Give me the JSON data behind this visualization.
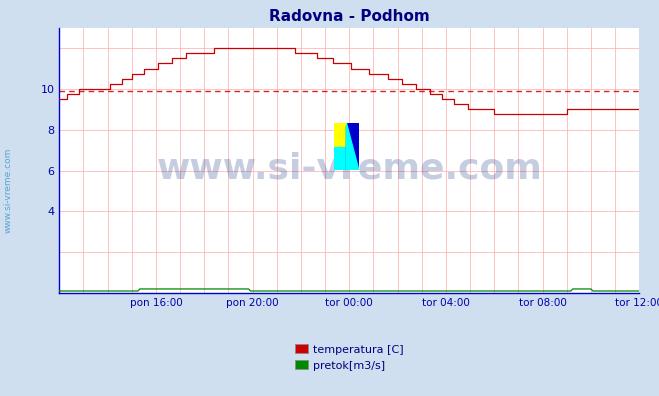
{
  "title": "Radovna - Podhom",
  "title_color": "#000080",
  "bg_color": "#d0dff0",
  "plot_bg_color": "#ffffff",
  "grid_color_v": "#ffaaaa",
  "grid_color_h": "#ffaaaa",
  "xlabel_color": "#0000aa",
  "ylabel_color": "#0000aa",
  "watermark_text": "www.si-vreme.com",
  "watermark_color": "#1a3a8a",
  "watermark_alpha": 0.25,
  "xlim": [
    0,
    288
  ],
  "ylim": [
    0,
    13
  ],
  "yticks": [
    4,
    6,
    8,
    10
  ],
  "xtick_labels": [
    "pon 16:00",
    "pon 20:00",
    "tor 00:00",
    "tor 04:00",
    "tor 08:00",
    "tor 12:00"
  ],
  "xtick_positions": [
    48,
    96,
    144,
    192,
    240,
    288
  ],
  "temp_color": "#cc0000",
  "flow_color": "#008800",
  "avg_color": "#cc0000",
  "avg_value": 9.9,
  "legend_temp": "temperatura [C]",
  "legend_flow": "pretok[m3/s]",
  "spine_color": "#0000cc",
  "left_label": "www.si-vreme.com",
  "left_label_color": "#4499cc"
}
